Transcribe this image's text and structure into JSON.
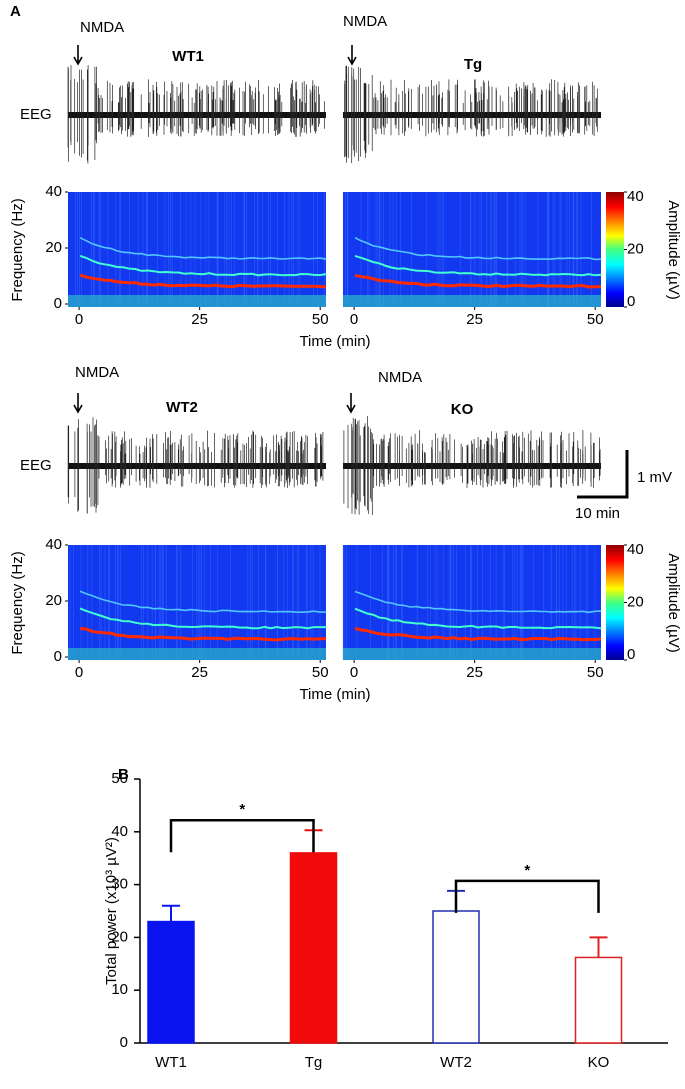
{
  "panel_labels": [
    "A",
    "B"
  ],
  "scale_bar": {
    "y_label": "1 mV",
    "x_label": "10 min"
  },
  "chart_data": [
    {
      "type": "spectrogram",
      "title": "WT1",
      "annotation": "NMDA",
      "trace_label": "EEG",
      "ylabel": "Frequency (Hz)",
      "xlabel": "Time (min)",
      "xlim": [
        -2.3,
        51.2
      ],
      "xticks": [
        0,
        25,
        50
      ],
      "ylim": [
        0,
        40
      ],
      "yticks": [
        0,
        20,
        40
      ]
    },
    {
      "type": "spectrogram",
      "title": "Tg",
      "annotation": "NMDA",
      "xlim": [
        -2.3,
        51.2
      ],
      "xticks": [
        0,
        25,
        50
      ],
      "ylim": [
        0,
        40
      ],
      "colorbar": {
        "label": "Amplitude (µV)",
        "lim": [
          0,
          40
        ],
        "ticks": [
          0,
          20,
          40
        ],
        "colormap": "jet"
      }
    },
    {
      "type": "spectrogram",
      "title": "WT2",
      "annotation": "NMDA",
      "trace_label": "EEG",
      "ylabel": "Frequency (Hz)",
      "xlabel": "Time (min)",
      "xlim": [
        -2.3,
        51.2
      ],
      "xticks": [
        0,
        25,
        50
      ],
      "ylim": [
        0,
        40
      ],
      "yticks": [
        0,
        20,
        40
      ]
    },
    {
      "type": "spectrogram",
      "title": "KO",
      "annotation": "NMDA",
      "xlim": [
        -2.3,
        51.2
      ],
      "xticks": [
        0,
        25,
        50
      ],
      "ylim": [
        0,
        40
      ],
      "colorbar": {
        "label": "Amplitude (µV)",
        "lim": [
          0,
          40
        ],
        "ticks": [
          0,
          20,
          40
        ],
        "colormap": "jet"
      }
    },
    {
      "type": "bar",
      "ylabel": "Total power (x10³ µV²)",
      "categories": [
        "WT1",
        "Tg",
        "WT2",
        "KO"
      ],
      "values": [
        23,
        36,
        25,
        16.2
      ],
      "errors": [
        3,
        4.3,
        3.8,
        3.8
      ],
      "colors": [
        "#0a14f0",
        "#f00a0a",
        "#ffffff",
        "#ffffff"
      ],
      "edge_colors": [
        "#0a14f0",
        "#f00a0a",
        "#2030b0",
        "#e02020"
      ],
      "ylim": [
        0,
        50
      ],
      "yticks": [
        0,
        10,
        20,
        30,
        40,
        50
      ],
      "significance": [
        {
          "groups": [
            "WT1",
            "Tg"
          ],
          "label": "*"
        },
        {
          "groups": [
            "WT2",
            "KO"
          ],
          "label": "*"
        }
      ]
    }
  ]
}
